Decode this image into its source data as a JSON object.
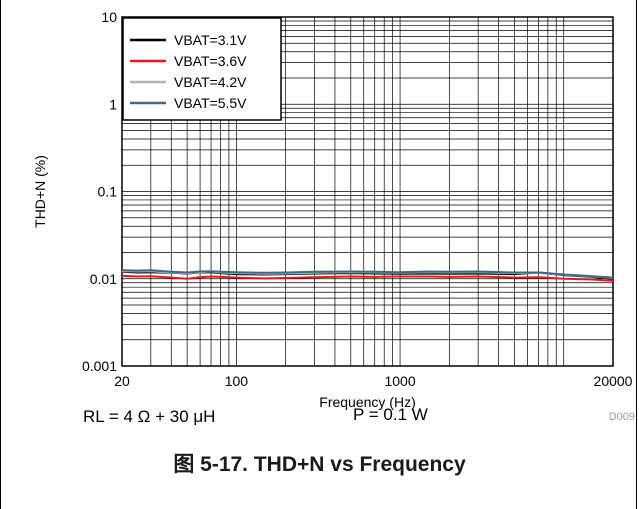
{
  "chart_data": {
    "type": "line",
    "title": "",
    "xlabel": "Frequency (Hz)",
    "ylabel": "THD+N (%)",
    "x_scale": "log",
    "y_scale": "log",
    "xlim": [
      20,
      20000
    ],
    "ylim": [
      0.001,
      10
    ],
    "grid": true,
    "legend_position": "top-left",
    "x_ticks": [
      20,
      100,
      1000,
      20000
    ],
    "x_tick_labels": [
      "20",
      "100",
      "1000",
      "20000"
    ],
    "y_ticks": [
      0.001,
      0.01,
      0.1,
      1,
      10
    ],
    "y_tick_labels": [
      "0.001",
      "0.01",
      "0.1",
      "1",
      "10"
    ],
    "figure_id": "D009",
    "x": [
      20,
      25,
      30,
      40,
      50,
      60,
      70,
      80,
      100,
      150,
      200,
      300,
      500,
      700,
      1000,
      1500,
      2000,
      3000,
      5000,
      7000,
      10000,
      15000,
      20000
    ],
    "series": [
      {
        "name": "VBAT=3.1V",
        "color": "#000000",
        "values": [
          0.012,
          0.0118,
          0.0119,
          0.0117,
          0.0115,
          0.0118,
          0.0119,
          0.0116,
          0.0113,
          0.0112,
          0.0113,
          0.0115,
          0.0116,
          0.0115,
          0.0114,
          0.0115,
          0.0114,
          0.0115,
          0.0113,
          0.0118,
          0.011,
          0.0105,
          0.01
        ]
      },
      {
        "name": "VBAT=3.6V",
        "color": "#e8191e",
        "values": [
          0.0108,
          0.0106,
          0.0107,
          0.0103,
          0.01,
          0.0104,
          0.0106,
          0.0105,
          0.0103,
          0.0101,
          0.0102,
          0.0104,
          0.0106,
          0.0105,
          0.0106,
          0.0106,
          0.0105,
          0.0106,
          0.0103,
          0.0104,
          0.01,
          0.0098,
          0.0095
        ]
      },
      {
        "name": "VBAT=4.2V",
        "color": "#b4b4b4",
        "values": [
          0.0122,
          0.0121,
          0.0122,
          0.0118,
          0.0116,
          0.0119,
          0.0121,
          0.0118,
          0.0116,
          0.0114,
          0.0115,
          0.0117,
          0.0119,
          0.0118,
          0.0117,
          0.0119,
          0.0118,
          0.0119,
          0.0116,
          0.0117,
          0.0111,
          0.0106,
          0.0102
        ]
      },
      {
        "name": "VBAT=5.5V",
        "color": "#3e6a80",
        "values": [
          0.0125,
          0.0124,
          0.0125,
          0.012,
          0.0118,
          0.0121,
          0.0122,
          0.012,
          0.0119,
          0.0117,
          0.0118,
          0.012,
          0.0121,
          0.012,
          0.0119,
          0.0121,
          0.012,
          0.0121,
          0.0118,
          0.0118,
          0.0112,
          0.0107,
          0.0103
        ]
      }
    ]
  },
  "conditions": {
    "load": "RL = 4 Ω + 30 μH",
    "power": "P = 0.1 W"
  },
  "caption": "图 5-17. THD+N vs Frequency"
}
